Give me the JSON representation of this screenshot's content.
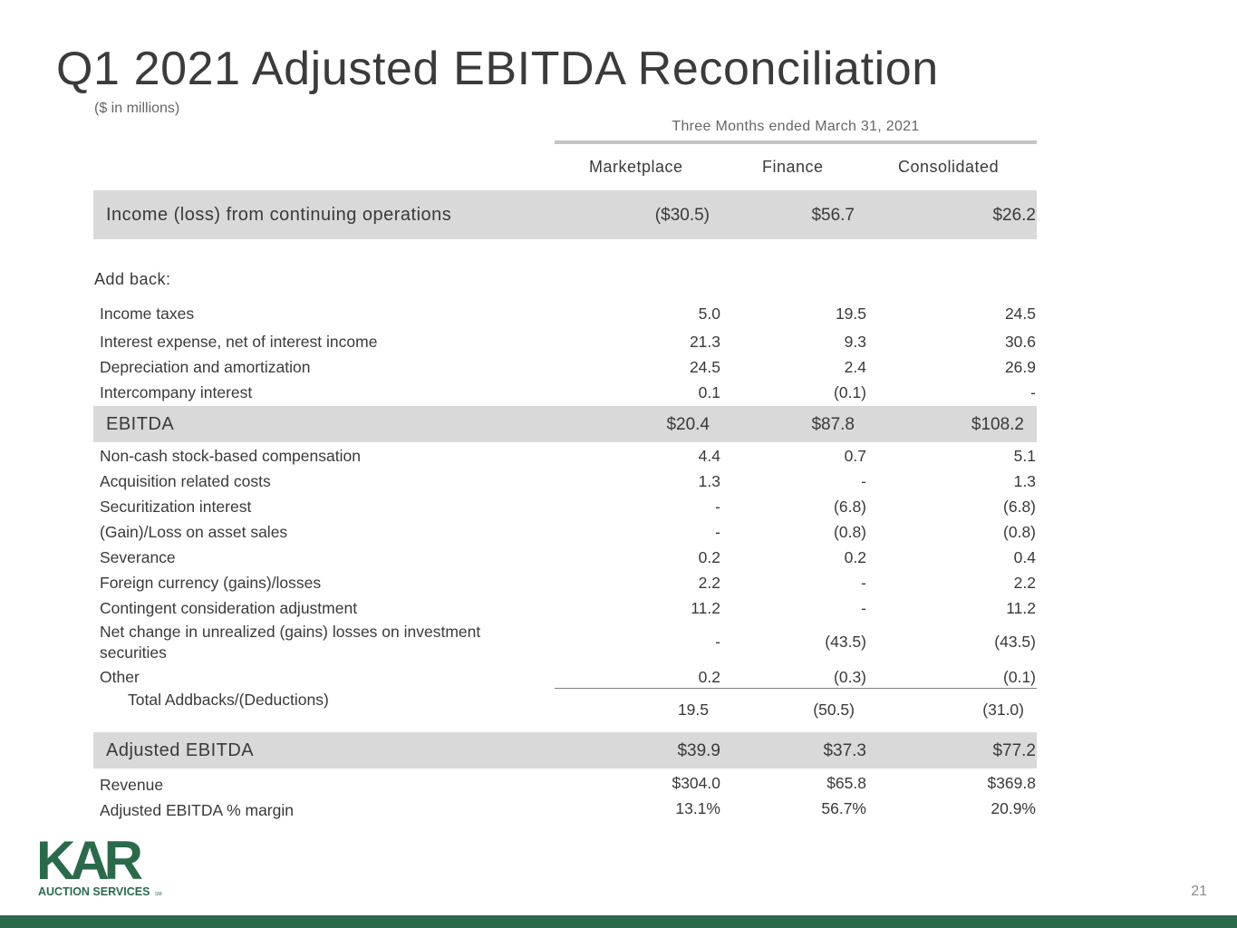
{
  "title": "Q1 2021 Adjusted EBITDA Reconciliation",
  "units": "($ in millions)",
  "period_header": "Three Months ended March 31, 2021",
  "columns": [
    "Marketplace",
    "Finance",
    "Consolidated"
  ],
  "income_row": {
    "label": "Income (loss) from continuing operations",
    "values": [
      "($30.5)",
      "$56.7",
      "$26.2"
    ]
  },
  "addback_label": "Add back:",
  "addback_rows": [
    {
      "label": "Income taxes",
      "values": [
        "5.0",
        "19.5",
        "24.5"
      ]
    },
    {
      "label": "Interest expense, net of interest income",
      "values": [
        "21.3",
        "9.3",
        "30.6"
      ]
    },
    {
      "label": "Depreciation and amortization",
      "values": [
        "24.5",
        "2.4",
        "26.9"
      ]
    },
    {
      "label": "Intercompany interest",
      "values": [
        "0.1",
        "(0.1)",
        "-"
      ]
    }
  ],
  "ebitda_row": {
    "label": "EBITDA",
    "values": [
      "$20.4",
      "$87.8",
      "$108.2"
    ]
  },
  "adjustment_rows": [
    {
      "label": "Non-cash stock-based compensation",
      "values": [
        "4.4",
        "0.7",
        "5.1"
      ]
    },
    {
      "label": "Acquisition related costs",
      "values": [
        "1.3",
        "-",
        "1.3"
      ]
    },
    {
      "label": "Securitization interest",
      "values": [
        "-",
        "(6.8)",
        "(6.8)"
      ]
    },
    {
      "label": "(Gain)/Loss on asset sales",
      "values": [
        "-",
        "(0.8)",
        "(0.8)"
      ]
    },
    {
      "label": "Severance",
      "values": [
        "0.2",
        "0.2",
        "0.4"
      ]
    },
    {
      "label": "Foreign currency (gains)/losses",
      "values": [
        "2.2",
        "-",
        "2.2"
      ]
    },
    {
      "label": "Contingent consideration adjustment",
      "values": [
        "11.2",
        "-",
        "11.2"
      ]
    },
    {
      "label": "Net change in unrealized (gains) losses on investment securities",
      "values": [
        "-",
        "(43.5)",
        "(43.5)"
      ]
    },
    {
      "label": "Other",
      "values": [
        "0.2",
        "(0.3)",
        "(0.1)"
      ]
    }
  ],
  "total_row": {
    "label": "Total Addbacks/(Deductions)",
    "values": [
      "19.5",
      "(50.5)",
      "(31.0)"
    ]
  },
  "adjusted_row": {
    "label": "Adjusted EBITDA",
    "values": [
      "$39.9",
      "$37.3",
      "$77.2"
    ]
  },
  "revenue_row": {
    "label": "Revenue",
    "values": [
      "$304.0",
      "$65.8",
      "$369.8"
    ]
  },
  "margin_row": {
    "label": "Adjusted EBITDA % margin",
    "values": [
      "13.1%",
      "56.7%",
      "20.9%"
    ]
  },
  "logo": {
    "word": "KAR",
    "tagline": "AUCTION SERVICES",
    "mark": "SM",
    "color": "#2a6a4b"
  },
  "page_number": "21",
  "colors": {
    "band": "#d9d9d9",
    "brand_green": "#2a6a4b",
    "text": "#3a3a3a"
  }
}
